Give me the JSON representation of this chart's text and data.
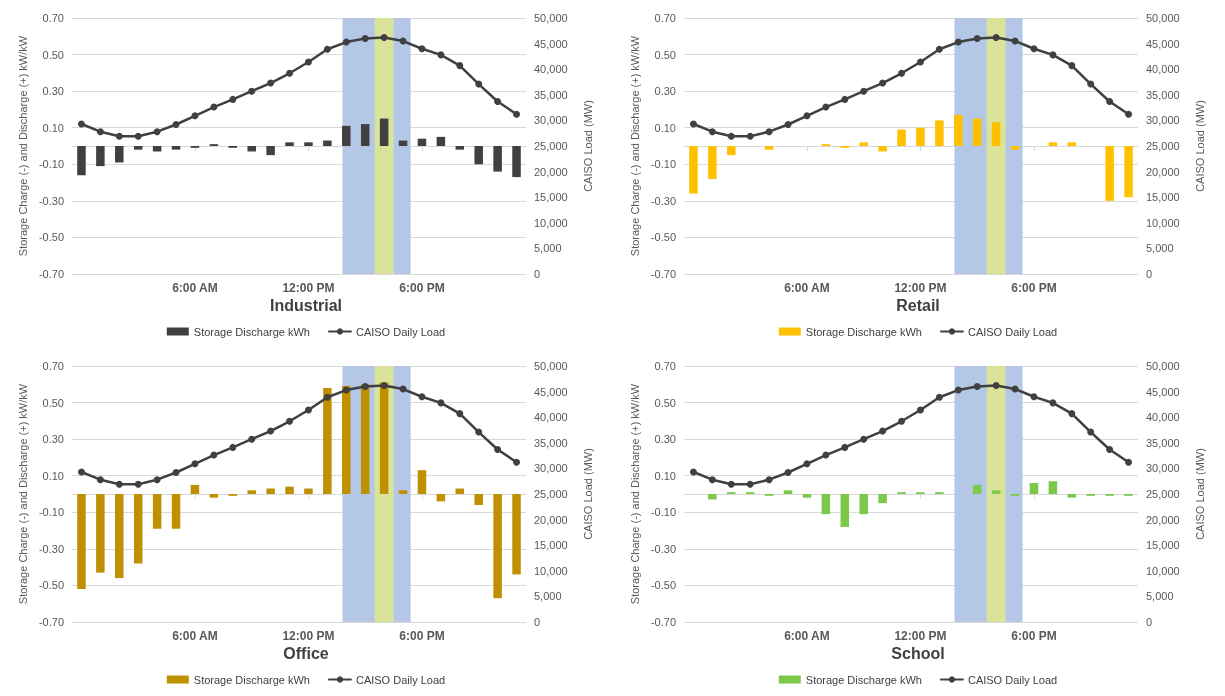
{
  "chart_data": [
    {
      "type": "bar",
      "title": "Industrial",
      "ylabel": "Storage Charge (-) and Discharge (+) kW/kW",
      "y2label": "CAISO Load (MW)",
      "x": [
        0,
        1,
        2,
        3,
        4,
        5,
        6,
        7,
        8,
        9,
        10,
        11,
        12,
        13,
        14,
        15,
        16,
        17,
        18,
        19,
        20,
        21,
        22,
        23
      ],
      "xlim": [
        -0.5,
        23.5
      ],
      "xticks": [
        {
          "value": 6,
          "label": "6:00 AM"
        },
        {
          "value": 12,
          "label": "12:00 PM"
        },
        {
          "value": 18,
          "label": "6:00 PM"
        }
      ],
      "ylim": [
        -0.7,
        0.7
      ],
      "yticks": [
        {
          "value": -0.7,
          "label": "-0.70"
        },
        {
          "value": -0.5,
          "label": "-0.50"
        },
        {
          "value": -0.3,
          "label": "-0.30"
        },
        {
          "value": -0.1,
          "label": "-0.10"
        },
        {
          "value": 0.1,
          "label": "0.10"
        },
        {
          "value": 0.3,
          "label": "0.30"
        },
        {
          "value": 0.5,
          "label": "0.50"
        },
        {
          "value": 0.7,
          "label": "0.70"
        }
      ],
      "y2lim": [
        0,
        50000
      ],
      "y2ticks": [
        {
          "value": 0,
          "label": "0"
        },
        {
          "value": 5000,
          "label": "5,000"
        },
        {
          "value": 10000,
          "label": "10,000"
        },
        {
          "value": 15000,
          "label": "15,000"
        },
        {
          "value": 20000,
          "label": "20,000"
        },
        {
          "value": 25000,
          "label": "25,000"
        },
        {
          "value": 30000,
          "label": "30,000"
        },
        {
          "value": 35000,
          "label": "35,000"
        },
        {
          "value": 40000,
          "label": "40,000"
        },
        {
          "value": 45000,
          "label": "45,000"
        },
        {
          "value": 50000,
          "label": "50,000"
        }
      ],
      "grid": "y",
      "legend": "bottom",
      "marker": "circle",
      "bands": [
        {
          "axis": "x",
          "from": 13.8,
          "to": 17.4,
          "color": "#b4c7e7"
        },
        {
          "axis": "x",
          "from": 15.5,
          "to": 16.5,
          "color": "#d9e39a"
        }
      ],
      "series": [
        {
          "name": "Storage Discharge kWh",
          "color": "#404040",
          "values": [
            -0.16,
            -0.11,
            -0.09,
            -0.02,
            -0.03,
            -0.02,
            -0.01,
            0.01,
            -0.01,
            -0.03,
            -0.05,
            0.02,
            0.02,
            0.03,
            0.11,
            0.12,
            0.15,
            0.03,
            0.04,
            0.05,
            -0.02,
            -0.1,
            -0.14,
            -0.17
          ]
        },
        {
          "name": "CAISO Daily Load",
          "type": "line",
          "axis": "y2",
          "color": "#404040",
          "values": [
            29300,
            27800,
            26900,
            26900,
            27800,
            29200,
            30900,
            32600,
            34100,
            35700,
            37300,
            39200,
            41400,
            43900,
            45300,
            46000,
            46200,
            45500,
            44000,
            42800,
            40700,
            37100,
            33700,
            31200
          ]
        }
      ]
    },
    {
      "type": "bar",
      "title": "Retail",
      "ylabel": "Storage Charge (-) and Discharge (+) kW/kW",
      "y2label": "CAISO Load (MW)",
      "x": [
        0,
        1,
        2,
        3,
        4,
        5,
        6,
        7,
        8,
        9,
        10,
        11,
        12,
        13,
        14,
        15,
        16,
        17,
        18,
        19,
        20,
        21,
        22,
        23
      ],
      "xlim": [
        -0.5,
        23.5
      ],
      "xticks": [
        {
          "value": 6,
          "label": "6:00 AM"
        },
        {
          "value": 12,
          "label": "12:00 PM"
        },
        {
          "value": 18,
          "label": "6:00 PM"
        }
      ],
      "ylim": [
        -0.7,
        0.7
      ],
      "yticks": [
        {
          "value": -0.7,
          "label": "-0.70"
        },
        {
          "value": -0.5,
          "label": "-0.50"
        },
        {
          "value": -0.3,
          "label": "-0.30"
        },
        {
          "value": -0.1,
          "label": "-0.10"
        },
        {
          "value": 0.1,
          "label": "0.10"
        },
        {
          "value": 0.3,
          "label": "0.30"
        },
        {
          "value": 0.5,
          "label": "0.50"
        },
        {
          "value": 0.7,
          "label": "0.70"
        }
      ],
      "y2lim": [
        0,
        50000
      ],
      "y2ticks": [
        {
          "value": 0,
          "label": "0"
        },
        {
          "value": 5000,
          "label": "5,000"
        },
        {
          "value": 10000,
          "label": "10,000"
        },
        {
          "value": 15000,
          "label": "15,000"
        },
        {
          "value": 20000,
          "label": "20,000"
        },
        {
          "value": 25000,
          "label": "25,000"
        },
        {
          "value": 30000,
          "label": "30,000"
        },
        {
          "value": 35000,
          "label": "35,000"
        },
        {
          "value": 40000,
          "label": "40,000"
        },
        {
          "value": 45000,
          "label": "45,000"
        },
        {
          "value": 50000,
          "label": "50,000"
        }
      ],
      "grid": "y",
      "legend": "bottom",
      "marker": "circle",
      "bands": [
        {
          "axis": "x",
          "from": 13.8,
          "to": 17.4,
          "color": "#b4c7e7"
        },
        {
          "axis": "x",
          "from": 15.5,
          "to": 16.5,
          "color": "#d9e39a"
        }
      ],
      "series": [
        {
          "name": "Storage Discharge kWh",
          "color": "#ffc000",
          "values": [
            -0.26,
            -0.18,
            -0.05,
            0,
            -0.02,
            0,
            0,
            0.01,
            -0.01,
            0.02,
            -0.03,
            0.09,
            0.1,
            0.14,
            0.17,
            0.15,
            0.13,
            -0.02,
            0,
            0.02,
            0.02,
            0,
            -0.3,
            -0.28
          ]
        },
        {
          "name": "CAISO Daily Load",
          "type": "line",
          "axis": "y2",
          "color": "#404040",
          "values": [
            29300,
            27800,
            26900,
            26900,
            27800,
            29200,
            30900,
            32600,
            34100,
            35700,
            37300,
            39200,
            41400,
            43900,
            45300,
            46000,
            46200,
            45500,
            44000,
            42800,
            40700,
            37100,
            33700,
            31200
          ]
        }
      ]
    },
    {
      "type": "bar",
      "title": "Office",
      "ylabel": "Storage Charge (-) and Discharge (+) kW/kW",
      "y2label": "CAISO Load (MW)",
      "x": [
        0,
        1,
        2,
        3,
        4,
        5,
        6,
        7,
        8,
        9,
        10,
        11,
        12,
        13,
        14,
        15,
        16,
        17,
        18,
        19,
        20,
        21,
        22,
        23
      ],
      "xlim": [
        -0.5,
        23.5
      ],
      "xticks": [
        {
          "value": 6,
          "label": "6:00 AM"
        },
        {
          "value": 12,
          "label": "12:00 PM"
        },
        {
          "value": 18,
          "label": "6:00 PM"
        }
      ],
      "ylim": [
        -0.7,
        0.7
      ],
      "yticks": [
        {
          "value": -0.7,
          "label": "-0.70"
        },
        {
          "value": -0.5,
          "label": "-0.50"
        },
        {
          "value": -0.3,
          "label": "-0.30"
        },
        {
          "value": -0.1,
          "label": "-0.10"
        },
        {
          "value": 0.1,
          "label": "0.10"
        },
        {
          "value": 0.3,
          "label": "0.30"
        },
        {
          "value": 0.5,
          "label": "0.50"
        },
        {
          "value": 0.7,
          "label": "0.70"
        }
      ],
      "y2lim": [
        0,
        50000
      ],
      "y2ticks": [
        {
          "value": 0,
          "label": "0"
        },
        {
          "value": 5000,
          "label": "5,000"
        },
        {
          "value": 10000,
          "label": "10,000"
        },
        {
          "value": 15000,
          "label": "15,000"
        },
        {
          "value": 20000,
          "label": "20,000"
        },
        {
          "value": 25000,
          "label": "25,000"
        },
        {
          "value": 30000,
          "label": "30,000"
        },
        {
          "value": 35000,
          "label": "35,000"
        },
        {
          "value": 40000,
          "label": "40,000"
        },
        {
          "value": 45000,
          "label": "45,000"
        },
        {
          "value": 50000,
          "label": "50,000"
        }
      ],
      "grid": "y",
      "legend": "bottom",
      "marker": "circle",
      "bands": [
        {
          "axis": "x",
          "from": 13.8,
          "to": 17.4,
          "color": "#b4c7e7"
        },
        {
          "axis": "x",
          "from": 15.5,
          "to": 16.5,
          "color": "#d9e39a"
        }
      ],
      "series": [
        {
          "name": "Storage Discharge kWh",
          "color": "#bf9000",
          "values": [
            -0.52,
            -0.43,
            -0.46,
            -0.38,
            -0.19,
            -0.19,
            0.05,
            -0.02,
            -0.01,
            0.02,
            0.03,
            0.04,
            0.03,
            0.58,
            0.59,
            0.6,
            0.61,
            0.02,
            0.13,
            -0.04,
            0.03,
            -0.06,
            -0.57,
            -0.44
          ]
        },
        {
          "name": "CAISO Daily Load",
          "type": "line",
          "axis": "y2",
          "color": "#404040",
          "values": [
            29300,
            27800,
            26900,
            26900,
            27800,
            29200,
            30900,
            32600,
            34100,
            35700,
            37300,
            39200,
            41400,
            43900,
            45300,
            46000,
            46200,
            45500,
            44000,
            42800,
            40700,
            37100,
            33700,
            31200
          ]
        }
      ]
    },
    {
      "type": "bar",
      "title": "School",
      "ylabel": "Storage Charge (-) and Discharge (+) kW/kW",
      "y2label": "CAISO Load (MW)",
      "x": [
        0,
        1,
        2,
        3,
        4,
        5,
        6,
        7,
        8,
        9,
        10,
        11,
        12,
        13,
        14,
        15,
        16,
        17,
        18,
        19,
        20,
        21,
        22,
        23
      ],
      "xlim": [
        -0.5,
        23.5
      ],
      "xticks": [
        {
          "value": 6,
          "label": "6:00 AM"
        },
        {
          "value": 12,
          "label": "12:00 PM"
        },
        {
          "value": 18,
          "label": "6:00 PM"
        }
      ],
      "ylim": [
        -0.7,
        0.7
      ],
      "yticks": [
        {
          "value": -0.7,
          "label": "-0.70"
        },
        {
          "value": -0.5,
          "label": "-0.50"
        },
        {
          "value": -0.3,
          "label": "-0.30"
        },
        {
          "value": -0.1,
          "label": "-0.10"
        },
        {
          "value": 0.1,
          "label": "0.10"
        },
        {
          "value": 0.3,
          "label": "0.30"
        },
        {
          "value": 0.5,
          "label": "0.50"
        },
        {
          "value": 0.7,
          "label": "0.70"
        }
      ],
      "y2lim": [
        0,
        50000
      ],
      "y2ticks": [
        {
          "value": 0,
          "label": "0"
        },
        {
          "value": 5000,
          "label": "5,000"
        },
        {
          "value": 10000,
          "label": "10,000"
        },
        {
          "value": 15000,
          "label": "15,000"
        },
        {
          "value": 20000,
          "label": "20,000"
        },
        {
          "value": 25000,
          "label": "25,000"
        },
        {
          "value": 30000,
          "label": "30,000"
        },
        {
          "value": 35000,
          "label": "35,000"
        },
        {
          "value": 40000,
          "label": "40,000"
        },
        {
          "value": 45000,
          "label": "45,000"
        },
        {
          "value": 50000,
          "label": "50,000"
        }
      ],
      "grid": "y",
      "legend": "bottom",
      "marker": "circle",
      "bands": [
        {
          "axis": "x",
          "from": 13.8,
          "to": 17.4,
          "color": "#b4c7e7"
        },
        {
          "axis": "x",
          "from": 15.5,
          "to": 16.5,
          "color": "#d9e39a"
        }
      ],
      "series": [
        {
          "name": "Storage Discharge kWh",
          "color": "#7cc84a",
          "values": [
            0,
            -0.03,
            0.01,
            0.01,
            -0.01,
            0.02,
            -0.02,
            -0.11,
            -0.18,
            -0.11,
            -0.05,
            0.01,
            0.01,
            0.01,
            0,
            0.05,
            0.02,
            -0.01,
            0.06,
            0.07,
            -0.02,
            -0.01,
            -0.01,
            -0.01
          ]
        },
        {
          "name": "CAISO Daily Load",
          "type": "line",
          "axis": "y2",
          "color": "#404040",
          "values": [
            29300,
            27800,
            26900,
            26900,
            27800,
            29200,
            30900,
            32600,
            34100,
            35700,
            37300,
            39200,
            41400,
            43900,
            45300,
            46000,
            46200,
            45500,
            44000,
            42800,
            40700,
            37100,
            33700,
            31200
          ]
        }
      ]
    }
  ]
}
